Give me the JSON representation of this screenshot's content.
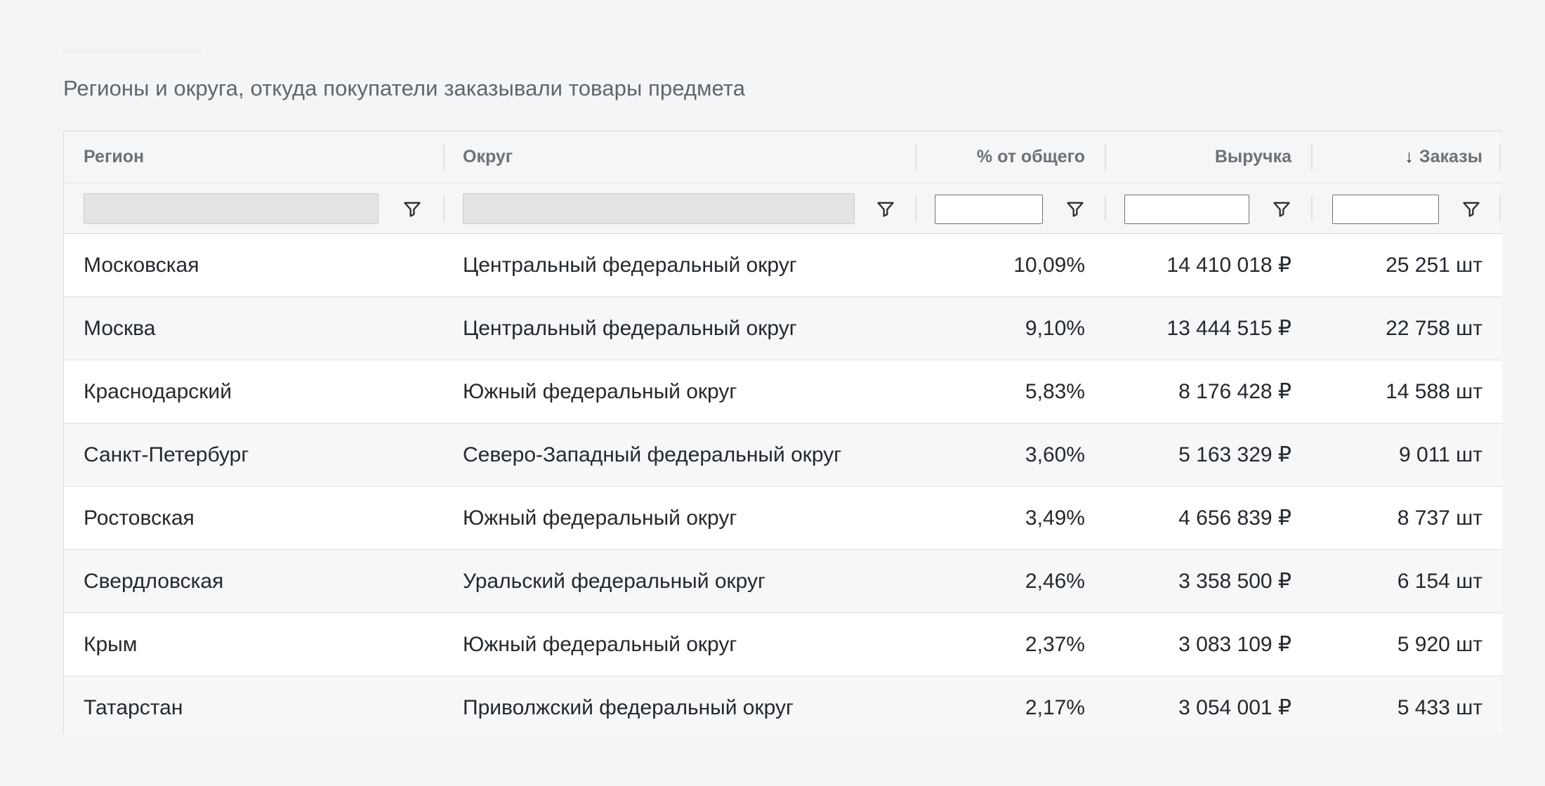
{
  "section_title": "Регионы и округа, откуда покупатели заказывали товары предмета",
  "columns": {
    "region": "Регион",
    "district": "Округ",
    "percent": "% от общего",
    "revenue": "Выручка",
    "orders": "Заказы",
    "orders_sort_icon": "arrow-down-icon"
  },
  "filter_icon": "filter-icon",
  "rows": [
    {
      "region": "Московская",
      "district": "Центральный федеральный округ",
      "percent": "10,09%",
      "revenue": "14 410 018 ₽",
      "orders": "25 251 шт"
    },
    {
      "region": "Москва",
      "district": "Центральный федеральный округ",
      "percent": "9,10%",
      "revenue": "13 444 515 ₽",
      "orders": "22 758 шт"
    },
    {
      "region": "Краснодарский",
      "district": "Южный федеральный округ",
      "percent": "5,83%",
      "revenue": "8 176 428 ₽",
      "orders": "14 588 шт"
    },
    {
      "region": "Санкт-Петербург",
      "district": "Северо-Западный федеральный округ",
      "percent": "3,60%",
      "revenue": "5 163 329 ₽",
      "orders": "9 011 шт"
    },
    {
      "region": "Ростовская",
      "district": "Южный федеральный округ",
      "percent": "3,49%",
      "revenue": "4 656 839 ₽",
      "orders": "8 737 шт"
    },
    {
      "region": "Свердловская",
      "district": "Уральский федеральный округ",
      "percent": "2,46%",
      "revenue": "3 358 500 ₽",
      "orders": "6 154 шт"
    },
    {
      "region": "Крым",
      "district": "Южный федеральный округ",
      "percent": "2,37%",
      "revenue": "3 083 109 ₽",
      "orders": "5 920 шт"
    },
    {
      "region": "Татарстан",
      "district": "Приволжский федеральный округ",
      "percent": "2,17%",
      "revenue": "3 054 001 ₽",
      "orders": "5 433 шт"
    }
  ]
}
